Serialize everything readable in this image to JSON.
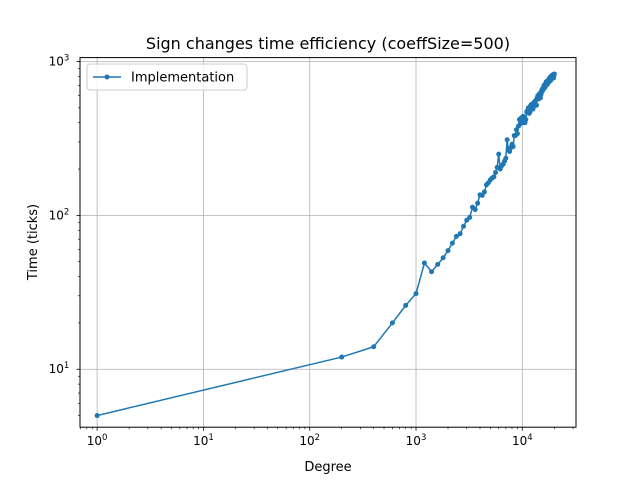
{
  "chart_data": {
    "type": "line",
    "title": "Sign changes time efficiency (coeffSize=500)",
    "xlabel": "Degree",
    "ylabel": "Time (ticks)",
    "xscale": "log",
    "yscale": "log",
    "xlim": [
      0.69,
      32000
    ],
    "ylim": [
      4.2,
      1060
    ],
    "grid": true,
    "legend_position": "top-left",
    "x_ticks": [
      {
        "value": 1,
        "base": "10",
        "exp": "0"
      },
      {
        "value": 10,
        "base": "10",
        "exp": "1"
      },
      {
        "value": 100,
        "base": "10",
        "exp": "2"
      },
      {
        "value": 1000,
        "base": "10",
        "exp": "3"
      },
      {
        "value": 10000,
        "base": "10",
        "exp": "4"
      }
    ],
    "y_ticks": [
      {
        "value": 10,
        "base": "10",
        "exp": "1"
      },
      {
        "value": 100,
        "base": "10",
        "exp": "2"
      },
      {
        "value": 1000,
        "base": "10",
        "exp": "3"
      }
    ],
    "series": [
      {
        "name": "Implementation",
        "color": "#1f77b4",
        "x": [
          1,
          200,
          400,
          600,
          800,
          1000,
          1200,
          1400,
          1600,
          1800,
          2000,
          2200,
          2400,
          2600,
          2800,
          3000,
          3200,
          3400,
          3600,
          3800,
          4000,
          4200,
          4400,
          4600,
          4800,
          5000,
          5200,
          5400,
          5600,
          5800,
          6000,
          6200,
          6400,
          6600,
          6800,
          7000,
          7200,
          7400,
          7600,
          7800,
          8000,
          8200,
          8400,
          8600,
          8800,
          9000,
          9200,
          9400,
          9600,
          9800,
          10000,
          10200,
          10400,
          10600,
          10800,
          11000,
          11200,
          11400,
          11600,
          11800,
          12000,
          12200,
          12400,
          12600,
          12800,
          13000,
          13200,
          13400,
          13600,
          13800,
          14000,
          14200,
          14400,
          14600,
          14800,
          15000,
          15200,
          15400,
          15600,
          15800,
          16000,
          16200,
          16400,
          16600,
          16800,
          17000,
          17200,
          17400,
          17600,
          17800,
          18000,
          18200,
          18400,
          18600,
          18800,
          19000,
          19200,
          19400,
          19600,
          19800,
          20000
        ],
        "y": [
          5,
          12,
          14,
          20,
          26,
          31,
          49,
          43,
          48,
          53,
          59,
          66,
          73,
          76,
          85,
          93,
          97,
          113,
          109,
          120,
          136,
          135,
          142,
          158,
          163,
          170,
          175,
          178,
          190,
          205,
          250,
          200,
          210,
          215,
          225,
          235,
          310,
          265,
          260,
          275,
          290,
          280,
          330,
          330,
          360,
          340,
          380,
          420,
          395,
          430,
          400,
          440,
          430,
          400,
          420,
          470,
          480,
          500,
          460,
          470,
          520,
          500,
          530,
          490,
          510,
          545,
          530,
          560,
          520,
          580,
          600,
          570,
          590,
          620,
          580,
          610,
          650,
          640,
          670,
          660,
          700,
          690,
          680,
          720,
          740,
          720,
          710,
          750,
          730,
          770,
          760,
          790,
          750,
          780,
          800,
          810,
          790,
          820,
          780,
          800,
          830
        ]
      }
    ]
  }
}
